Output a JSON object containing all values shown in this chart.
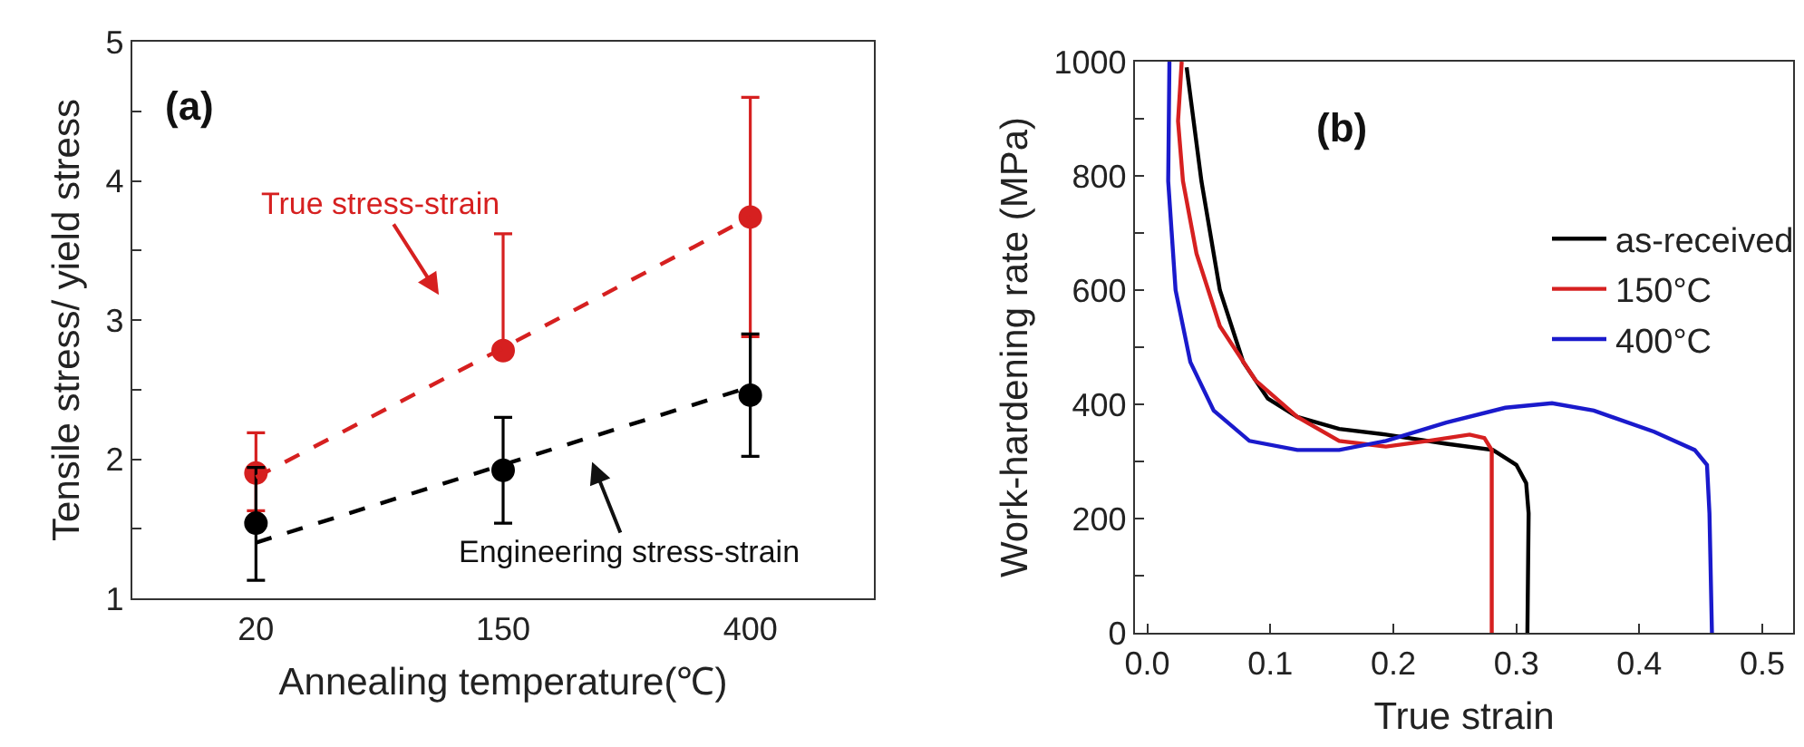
{
  "chart_data": [
    {
      "type": "scatter",
      "xlabel": "Annealing temperature(℃)",
      "ylabel": "Tensile stress/ yield stress",
      "categories": [
        "20",
        "150",
        "400"
      ],
      "ylim": [
        1,
        5
      ],
      "yticks": [
        1,
        {
          "value": 1.5,
          "label": null
        },
        2,
        {
          "value": 2.5,
          "label": null
        },
        3,
        {
          "value": 3.5,
          "label": null
        },
        4,
        {
          "value": 4.5,
          "label": null
        },
        5
      ],
      "grid": false,
      "legend": false,
      "marker": "circle",
      "series": [
        {
          "color": "#d62020",
          "values": [
            1.9,
            2.78,
            3.74
          ],
          "errors": [
            [
              1.63,
              2.19
            ],
            [
              2.78,
              3.62
            ],
            [
              2.88,
              4.6
            ]
          ]
        },
        {
          "color": "#000000",
          "values": [
            1.54,
            1.92,
            2.46
          ],
          "errors": [
            [
              1.13,
              1.94
            ],
            [
              1.54,
              2.3
            ],
            [
              2.02,
              2.9
            ]
          ]
        },
        {
          "type": "line",
          "line_style": "dashed",
          "marker": "none",
          "color": "#d62020",
          "values": [
            1.87,
            2.8,
            3.74
          ]
        },
        {
          "type": "line",
          "line_style": "dashed",
          "marker": "none",
          "color": "#000000",
          "values": [
            1.4,
            1.96,
            2.52
          ]
        }
      ],
      "annotations": [
        "(a)",
        "True stress-strain",
        "Engineering stress-strain"
      ]
    },
    {
      "type": "line",
      "xlabel": "True strain",
      "ylabel": "Work-hardening rate (MPa)",
      "xlim": [
        -0.01,
        0.525
      ],
      "xticks": [
        {
          "value": 0,
          "label": "0.0"
        },
        0.1,
        0.2,
        0.3,
        0.4,
        0.5
      ],
      "ylim": [
        0,
        1000
      ],
      "yticks": [
        0,
        {
          "value": 100,
          "label": null
        },
        200,
        {
          "value": 300,
          "label": null
        },
        400,
        {
          "value": 500,
          "label": null
        },
        600,
        {
          "value": 700,
          "label": null
        },
        800,
        {
          "value": 900,
          "label": null
        },
        1000
      ],
      "grid": false,
      "legend": "top right",
      "marker": "none",
      "line_style": "solid",
      "series": [
        {
          "name": "as-received",
          "color": "#000000",
          "x": [
            0.032,
            0.044,
            0.059,
            0.078,
            0.098,
            0.122,
            0.156,
            0.194,
            0.243,
            0.281,
            0.3,
            0.308,
            0.31,
            0.309
          ],
          "values": [
            990,
            791,
            600,
            474,
            410,
            378,
            357,
            347,
            331,
            320,
            294,
            262,
            209,
            0
          ]
        },
        {
          "name": "150°C",
          "color": "#d62020",
          "x": [
            0.028,
            0.025,
            0.029,
            0.04,
            0.059,
            0.088,
            0.122,
            0.156,
            0.194,
            0.228,
            0.262,
            0.274,
            0.28,
            0.28
          ],
          "values": [
            1000,
            896,
            791,
            664,
            537,
            442,
            378,
            336,
            326,
            336,
            347,
            341,
            320,
            0
          ]
        },
        {
          "name": "400°C",
          "color": "#1a1acc",
          "x": [
            0.018,
            0.017,
            0.023,
            0.035,
            0.054,
            0.083,
            0.122,
            0.156,
            0.194,
            0.243,
            0.291,
            0.329,
            0.363,
            0.412,
            0.445,
            0.455,
            0.457,
            0.459
          ],
          "values": [
            1000,
            791,
            600,
            474,
            389,
            336,
            320,
            320,
            336,
            368,
            394,
            402,
            389,
            352,
            320,
            294,
            209,
            0
          ]
        }
      ],
      "annotations": [
        "(b)"
      ]
    }
  ]
}
